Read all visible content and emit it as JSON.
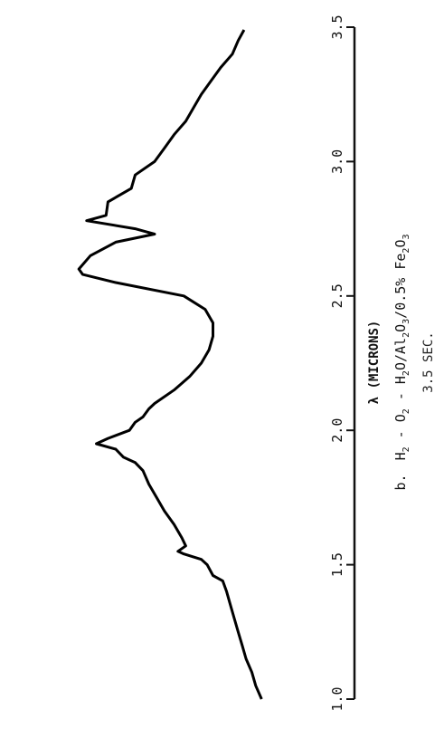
{
  "chart_data": {
    "type": "line",
    "orientation": "rotated 90 degrees counter-clockwise",
    "title": "",
    "xlabel": "λ (MICRONS)",
    "ylabel": "",
    "xlim": [
      1.0,
      3.5
    ],
    "x_ticks": [
      1.0,
      1.5,
      2.0,
      2.5,
      3.0,
      3.5
    ],
    "x_tick_labels": [
      "1.0",
      "1.5",
      "2.0",
      "2.5",
      "3.0",
      "3.5"
    ],
    "ylim": [
      0,
      1
    ],
    "grid": false,
    "caption": {
      "label": "b.",
      "formula_parts": [
        "H",
        "2",
        " - O",
        "2",
        " - H",
        "2",
        "O/Al",
        "2",
        "O",
        "3",
        "/0.5% Fe",
        "2",
        "O",
        "3"
      ]
    },
    "exposure": "3.5 SEC.",
    "series": [
      {
        "x": [
          1.0,
          1.05,
          1.1,
          1.15,
          1.2,
          1.25,
          1.3,
          1.35,
          1.4,
          1.44,
          1.46,
          1.5,
          1.52,
          1.54,
          1.55,
          1.57,
          1.6,
          1.65,
          1.7,
          1.75,
          1.8,
          1.85,
          1.88,
          1.9,
          1.93,
          1.95,
          1.97,
          2.0,
          2.03,
          2.05,
          2.08,
          2.1,
          2.15,
          2.2,
          2.25,
          2.3,
          2.35,
          2.4,
          2.45,
          2.5,
          2.55,
          2.58,
          2.6,
          2.65,
          2.7,
          2.73,
          2.75,
          2.78,
          2.8,
          2.85,
          2.9,
          2.95,
          3.0,
          3.05,
          3.1,
          3.15,
          3.2,
          3.25,
          3.3,
          3.35,
          3.4,
          3.45,
          3.49
        ],
        "y": [
          0.05,
          0.08,
          0.1,
          0.13,
          0.15,
          0.17,
          0.19,
          0.21,
          0.23,
          0.25,
          0.3,
          0.33,
          0.36,
          0.45,
          0.48,
          0.44,
          0.46,
          0.5,
          0.55,
          0.59,
          0.63,
          0.66,
          0.7,
          0.76,
          0.8,
          0.9,
          0.84,
          0.73,
          0.7,
          0.66,
          0.63,
          0.6,
          0.5,
          0.42,
          0.36,
          0.32,
          0.3,
          0.3,
          0.34,
          0.45,
          0.8,
          0.97,
          0.99,
          0.93,
          0.8,
          0.6,
          0.7,
          0.95,
          0.85,
          0.84,
          0.72,
          0.7,
          0.6,
          0.55,
          0.5,
          0.44,
          0.4,
          0.36,
          0.31,
          0.26,
          0.2,
          0.17,
          0.14
        ]
      }
    ]
  }
}
